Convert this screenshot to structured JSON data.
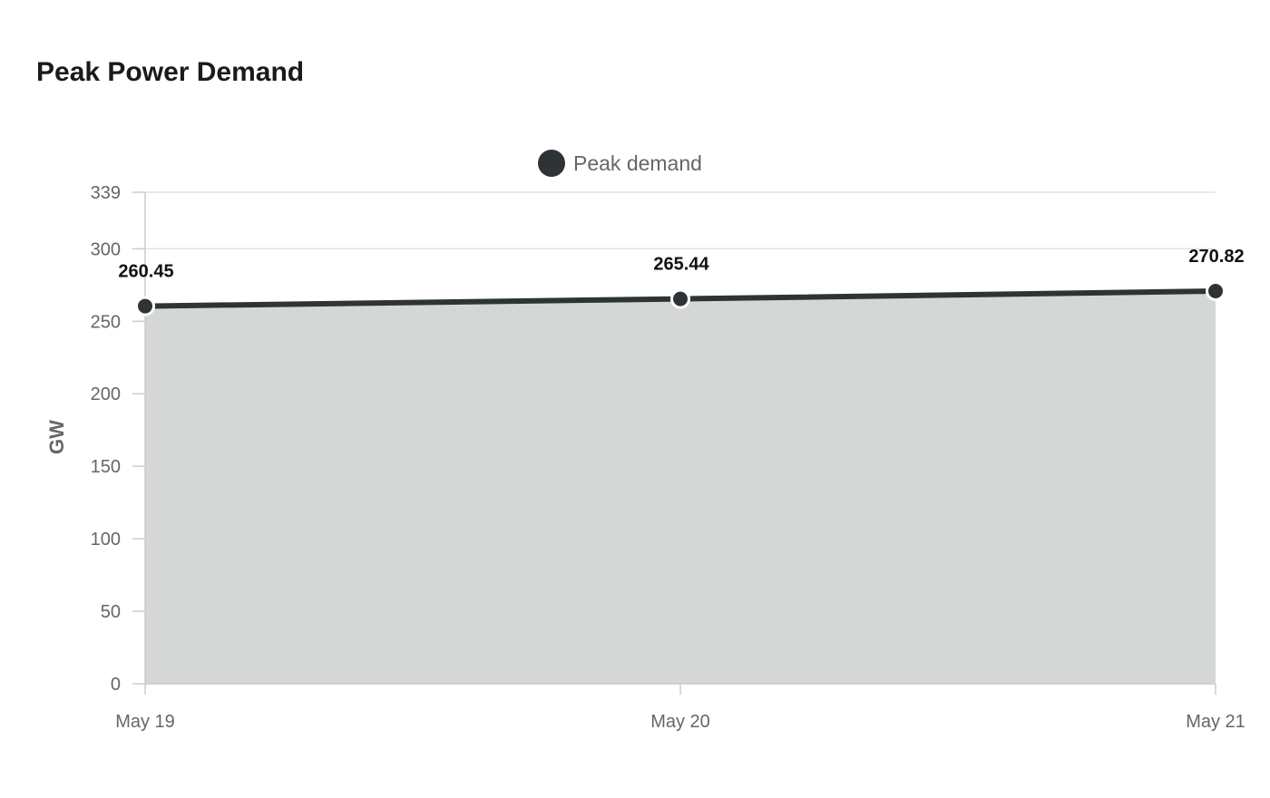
{
  "chart_data": {
    "type": "area",
    "title": "Peak Power Demand",
    "ylabel": "GW",
    "xlabel": "",
    "categories": [
      "May 19",
      "May 20",
      "May 21"
    ],
    "series": [
      {
        "name": "Peak demand",
        "values": [
          260.45,
          265.44,
          270.82
        ]
      }
    ],
    "data_labels": [
      "260.45",
      "265.44",
      "270.82"
    ],
    "yticks": [
      0,
      50,
      100,
      150,
      200,
      250,
      300,
      339
    ],
    "ylim": [
      0,
      339
    ],
    "grid": true,
    "legend_position": "top-center",
    "colors": {
      "line": "#2e3436",
      "fill": "#d5d7d6",
      "grid": "#e2e2e2",
      "axis": "#cccccc"
    }
  }
}
